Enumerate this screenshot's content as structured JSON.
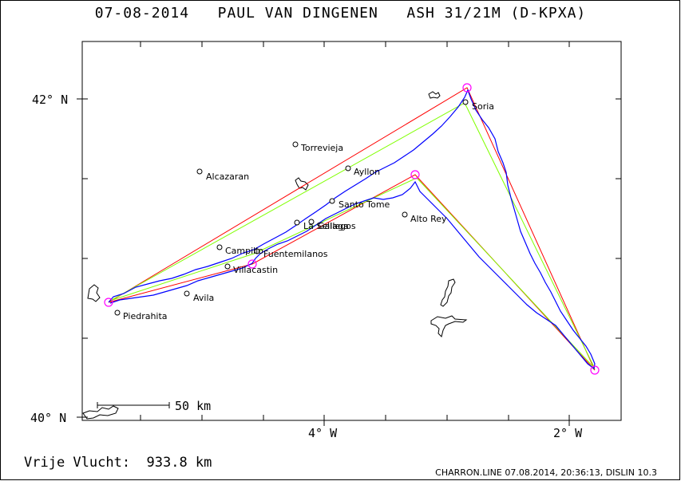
{
  "header": {
    "title": "07-08-2014   PAUL VAN DINGENEN   ASH 31/21M (D-KPXA)"
  },
  "axes": {
    "lat_labels": [
      "42° N",
      "40° N"
    ],
    "lon_labels": [
      "4° W",
      "2° W"
    ]
  },
  "scale_bar": {
    "label": "50 km"
  },
  "towns": [
    "Soria",
    "Torrevieja",
    "Alcazaran",
    "Ayllon",
    "Santo Tome",
    "Alto Rey",
    "La Sellaga",
    "Gallegos",
    "Campillo",
    "Fuentemilanos",
    "Villacastin",
    "Avila",
    "Piedrahita"
  ],
  "footer": {
    "distance": "Vrije Vlucht:  933.8 km",
    "credit": "CHARRON.LINE 07.08.2014, 20:36:13, DISLIN 10.3"
  },
  "colors": {
    "track": "#0000ff",
    "task_line": "#ff0000",
    "optimized_line": "#80ff00",
    "turnpoint": "#ff00ff",
    "land": "#000000"
  }
}
